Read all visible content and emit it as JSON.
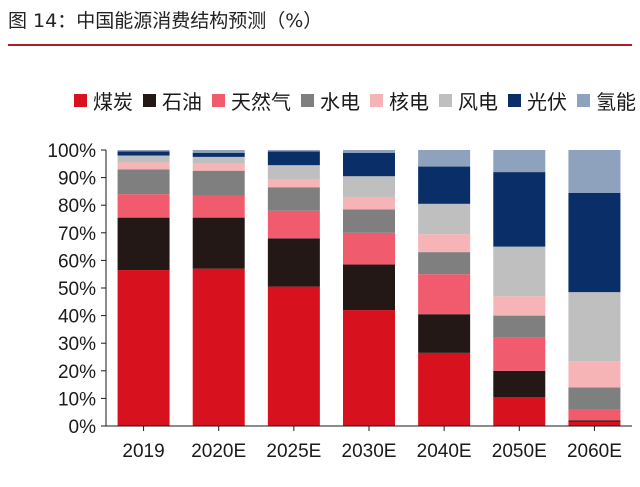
{
  "title": "图 14：中国能源消费结构预测（%）",
  "colors": {
    "煤炭": "#d7111d",
    "石油": "#231815",
    "天然气": "#f05c6e",
    "水电": "#7f7f7f",
    "核电": "#f7b4b7",
    "风电": "#bfbfbf",
    "光伏": "#0a2f68",
    "氢能": "#8ea1bd"
  },
  "chart_data": {
    "type": "bar",
    "stacked": true,
    "categories": [
      "2019",
      "2020E",
      "2025E",
      "2030E",
      "2040E",
      "2050E",
      "2060E"
    ],
    "series": [
      {
        "name": "煤炭",
        "values": [
          56.5,
          57,
          50.5,
          42,
          26.5,
          10.5,
          1.5
        ]
      },
      {
        "name": "石油",
        "values": [
          19,
          18.5,
          17.5,
          16.5,
          14,
          9.5,
          0.5
        ]
      },
      {
        "name": "天然气",
        "values": [
          8.5,
          8,
          10,
          11.5,
          14.5,
          12,
          4
        ]
      },
      {
        "name": "水电",
        "values": [
          9,
          9,
          8.5,
          8.5,
          8,
          8,
          8
        ]
      },
      {
        "name": "核电",
        "values": [
          2.5,
          2.5,
          3,
          4.5,
          6.5,
          7,
          9.5
        ]
      },
      {
        "name": "风电",
        "values": [
          2.5,
          2.5,
          5,
          7.5,
          11,
          18,
          25
        ]
      },
      {
        "name": "光伏",
        "values": [
          1.5,
          1.5,
          5,
          8.5,
          13.5,
          27,
          36
        ]
      },
      {
        "name": "氢能",
        "values": [
          0.5,
          1,
          0.5,
          1,
          6,
          8,
          15.5
        ]
      }
    ],
    "yticks": [
      "0%",
      "10%",
      "20%",
      "30%",
      "40%",
      "50%",
      "60%",
      "70%",
      "80%",
      "90%",
      "100%"
    ],
    "ylim": [
      0,
      100
    ],
    "legend_position": "top",
    "grid": false
  }
}
